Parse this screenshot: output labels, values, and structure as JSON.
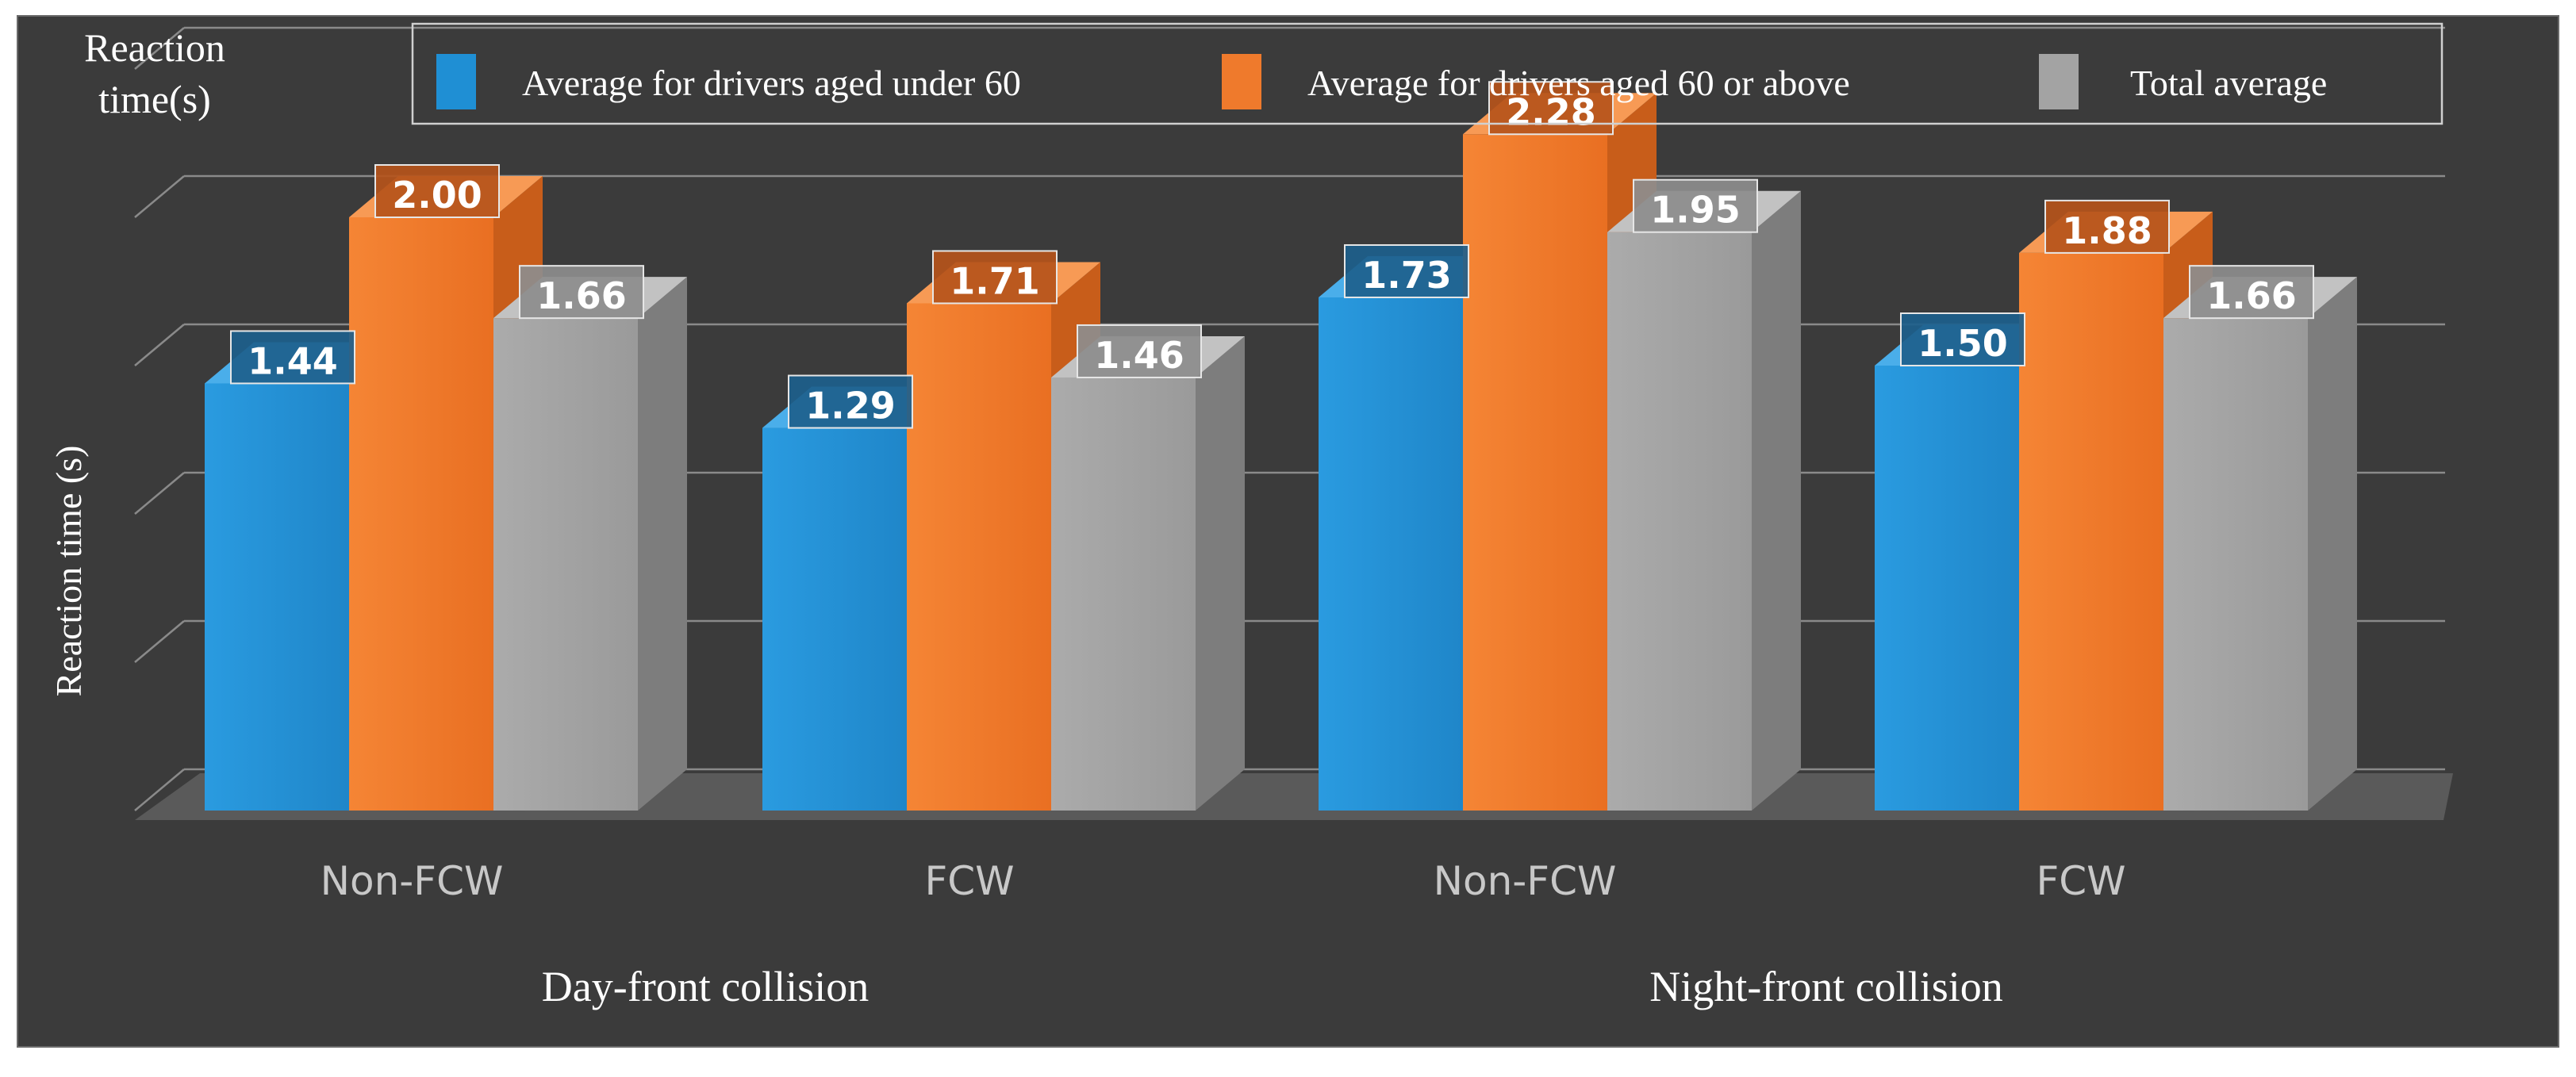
{
  "chart_data": {
    "type": "bar",
    "style": "3d-clustered",
    "corner_label": [
      "Reaction",
      "time(s)"
    ],
    "ylabel": "Reaction time (s)",
    "ylim": [
      0,
      2.5
    ],
    "grid": true,
    "legend_position": "top",
    "groups": [
      {
        "label": "Day-front collision",
        "categories": [
          "Non-FCW",
          "FCW"
        ]
      },
      {
        "label": "Night-front collision",
        "categories": [
          "Non-FCW",
          "FCW"
        ]
      }
    ],
    "categories": [
      "Non-FCW",
      "FCW",
      "Non-FCW",
      "FCW"
    ],
    "series": [
      {
        "name": "Average for drivers aged under 60",
        "color": "#1f8fd4",
        "values": [
          1.44,
          1.29,
          1.73,
          1.5
        ],
        "labels": [
          "1.44",
          "1.29",
          "1.73",
          "1.50"
        ]
      },
      {
        "name": "Average for drivers aged 60 or above",
        "color": "#ef7a2c",
        "values": [
          2.0,
          1.71,
          2.28,
          1.88
        ],
        "labels": [
          "2.00",
          "1.71",
          "2.28",
          "1.88"
        ]
      },
      {
        "name": "Total average",
        "color": "#a3a3a3",
        "values": [
          1.66,
          1.46,
          1.95,
          1.66
        ],
        "labels": [
          "1.66",
          "1.46",
          "1.95",
          "1.66"
        ]
      }
    ],
    "colors": {
      "background": "#3b3b3b",
      "grid": "#8a8a8a",
      "text": "#ffffff",
      "tick_text": "#c8c8c8"
    }
  }
}
